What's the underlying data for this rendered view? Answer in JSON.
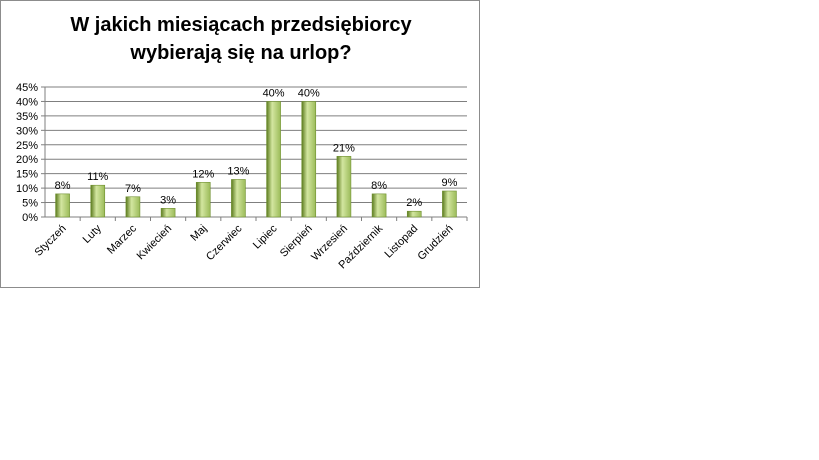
{
  "chart_data": {
    "type": "bar",
    "title_lines": [
      "W jakich miesiącach przedsiębiorcy",
      "wybierają się na urlop?"
    ],
    "title": "W jakich miesiącach przedsiębiorcy wybierają się na urlop?",
    "categories": [
      "Styczeń",
      "Luty",
      "Marzec",
      "Kwiecień",
      "Maj",
      "Czerwiec",
      "Lipiec",
      "Sierpień",
      "Wrzesień",
      "Październik",
      "Listopad",
      "Grudzień"
    ],
    "values": [
      8,
      11,
      7,
      3,
      12,
      13,
      40,
      40,
      21,
      8,
      2,
      9
    ],
    "value_labels": [
      "8%",
      "11%",
      "7%",
      "3%",
      "12%",
      "13%",
      "40%",
      "40%",
      "21%",
      "8%",
      "2%",
      "9%"
    ],
    "y_ticks": [
      0,
      5,
      10,
      15,
      20,
      25,
      30,
      35,
      40,
      45
    ],
    "y_tick_labels": [
      "0%",
      "5%",
      "10%",
      "15%",
      "20%",
      "25%",
      "30%",
      "35%",
      "40%",
      "45%"
    ],
    "ylim": [
      0,
      45
    ],
    "xlabel": "",
    "ylabel": "",
    "grid": true,
    "legend": false,
    "bar_color": "#9bbb59",
    "bar_dark": "#5a7a1c",
    "bar_light": "#d3e6a0"
  }
}
